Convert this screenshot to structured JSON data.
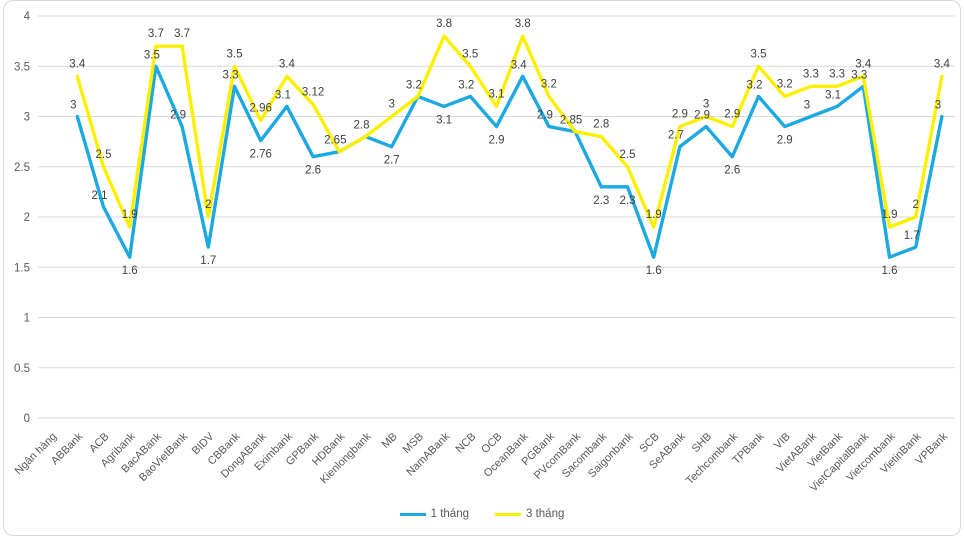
{
  "chart_data": {
    "type": "line",
    "title": "",
    "xlabel": "",
    "ylabel": "",
    "categories": [
      "Ngân hàng",
      "ABBank",
      "ACB",
      "Agribank",
      "BacABank",
      "BaoVietBank",
      "BIDV",
      "CBBank",
      "DongABank",
      "Eximbank",
      "GPBank",
      "HDBank",
      "Kienlongbank",
      "MB",
      "MSB",
      "NamABank",
      "NCB",
      "OCB",
      "OceanBank",
      "PGBank",
      "PVcomBank",
      "Sacombank",
      "Saigonbank",
      "SCB",
      "SeABank",
      "SHB",
      "Techcombank",
      "TPBank",
      "VIB",
      "VietABank",
      "VietBank",
      "VietCapitalBank",
      "Vietcombank",
      "VietinBank",
      "VPBank"
    ],
    "series": [
      {
        "name": "1 tháng",
        "color": "#1CA9E1",
        "values": [
          null,
          3,
          2.1,
          1.6,
          3.5,
          2.9,
          1.7,
          3.3,
          2.76,
          3.1,
          2.6,
          2.65,
          2.8,
          2.7,
          3.2,
          3.1,
          3.2,
          2.9,
          3.4,
          2.9,
          2.85,
          2.3,
          2.3,
          1.6,
          2.7,
          2.9,
          2.6,
          3.2,
          2.9,
          3,
          3.1,
          3.3,
          1.6,
          1.7,
          3
        ]
      },
      {
        "name": "3 tháng",
        "color": "#FBF000",
        "values": [
          null,
          3.4,
          2.5,
          1.9,
          3.7,
          3.7,
          2,
          3.5,
          2.96,
          3.4,
          3.12,
          2.65,
          2.8,
          3,
          3.2,
          3.8,
          3.5,
          3.1,
          3.8,
          3.2,
          2.85,
          2.8,
          2.5,
          1.9,
          2.9,
          3,
          2.9,
          3.5,
          3.2,
          3.3,
          3.3,
          3.4,
          1.9,
          2,
          3.4
        ]
      }
    ],
    "ylim": [
      0,
      4
    ],
    "yticks": [
      0,
      0.5,
      1,
      1.5,
      2,
      2.5,
      3,
      3.5,
      4
    ],
    "grid": true,
    "legend_position": "bottom"
  },
  "style": {
    "grid_color": "#d9d9d9",
    "axis_text_color": "#595959",
    "data_label_color": "#404040",
    "background": "#ffffff"
  }
}
